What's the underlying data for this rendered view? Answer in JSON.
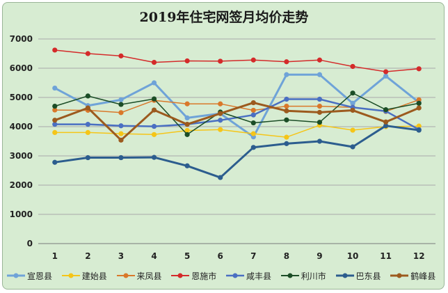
{
  "chart_data": {
    "type": "line",
    "title": "2019年住宅网签月均价走势",
    "xlabel": "",
    "ylabel": "",
    "x": [
      "1",
      "2",
      "3",
      "4",
      "5",
      "6",
      "7",
      "8",
      "9",
      "10",
      "11",
      "12"
    ],
    "ylim": [
      0,
      7000
    ],
    "yticks": [
      "0",
      "1000",
      "2000",
      "3000",
      "4000",
      "5000",
      "6000",
      "7000"
    ],
    "grid": true,
    "legend": "bottom",
    "series": [
      {
        "name": "宣恩县",
        "color": "#6fa3d8",
        "width": 3,
        "values": [
          5320,
          4720,
          4920,
          5500,
          4300,
          4450,
          3650,
          5780,
          5780,
          4800,
          5730,
          4830
        ]
      },
      {
        "name": "建始县",
        "color": "#f5c518",
        "width": 1.5,
        "values": [
          3800,
          3800,
          3760,
          3730,
          3870,
          3900,
          3760,
          3640,
          4050,
          3880,
          4000,
          4020
        ]
      },
      {
        "name": "来凤县",
        "color": "#d9782a",
        "width": 1.5,
        "values": [
          4570,
          4560,
          4480,
          4900,
          4780,
          4780,
          4560,
          4700,
          4700,
          4660,
          4520,
          4920
        ]
      },
      {
        "name": "恩施市",
        "color": "#d42a2a",
        "width": 1.5,
        "values": [
          6620,
          6500,
          6420,
          6200,
          6250,
          6240,
          6280,
          6220,
          6280,
          6060,
          5880,
          5980
        ]
      },
      {
        "name": "咸丰县",
        "color": "#4a6fc2",
        "width": 2.5,
        "values": [
          4080,
          4080,
          4030,
          4010,
          4080,
          4220,
          4400,
          4940,
          4940,
          4660,
          4530,
          3900
        ]
      },
      {
        "name": "利川市",
        "color": "#1b4d26",
        "width": 1.5,
        "values": [
          4700,
          5050,
          4760,
          4950,
          3730,
          4500,
          4130,
          4230,
          4150,
          5150,
          4580,
          4800
        ]
      },
      {
        "name": "巴东县",
        "color": "#2c5d8e",
        "width": 3,
        "values": [
          2780,
          2940,
          2940,
          2950,
          2660,
          2260,
          3290,
          3420,
          3500,
          3310,
          4030,
          3880
        ]
      },
      {
        "name": "鹤峰县",
        "color": "#9c5a1e",
        "width": 3,
        "values": [
          4220,
          4640,
          3540,
          4570,
          4080,
          4450,
          4820,
          4540,
          4490,
          4560,
          4160,
          4640
        ]
      }
    ]
  }
}
